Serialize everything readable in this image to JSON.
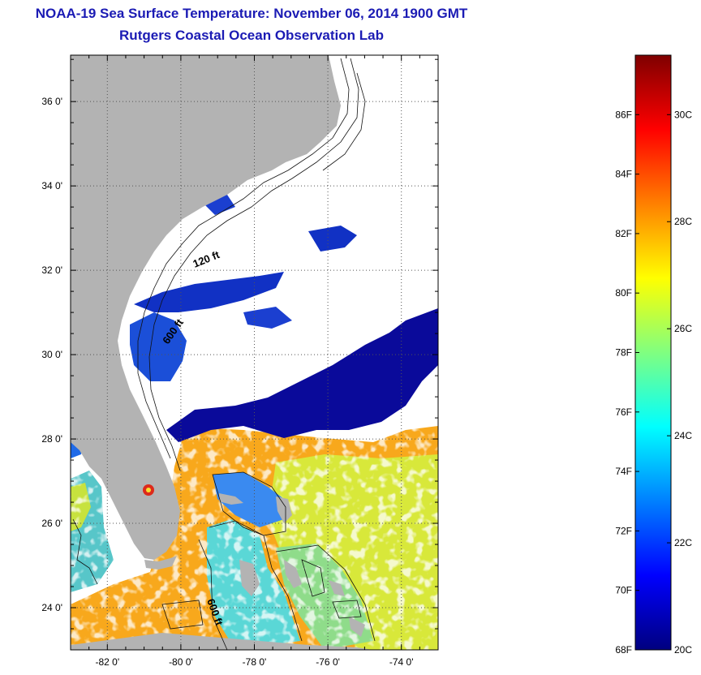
{
  "header": {
    "title": "NOAA-19 Sea Surface Temperature:  November 06, 2014 1900 GMT",
    "subtitle": "Rutgers Coastal Ocean Observation Lab"
  },
  "map": {
    "lon_range": [
      -83.0,
      -73.0
    ],
    "lat_range": [
      23.0,
      37.1
    ],
    "lat_ticks": [
      {
        "value": 24,
        "label": "24 0'"
      },
      {
        "value": 26,
        "label": "26 0'"
      },
      {
        "value": 28,
        "label": "28 0'"
      },
      {
        "value": 30,
        "label": "30 0'"
      },
      {
        "value": 32,
        "label": "32 0'"
      },
      {
        "value": 34,
        "label": "34 0'"
      },
      {
        "value": 36,
        "label": "36 0'"
      }
    ],
    "lon_ticks": [
      {
        "value": -82,
        "label": "-82 0'"
      },
      {
        "value": -80,
        "label": "-80 0'"
      },
      {
        "value": -78,
        "label": "-78 0'"
      },
      {
        "value": -76,
        "label": "-76 0'"
      },
      {
        "value": -74,
        "label": "-74 0'"
      }
    ],
    "contour_labels": [
      "120 ft",
      "600 ft",
      "600 ft"
    ],
    "colors": {
      "land": "#b3b3b3",
      "ocean_cloud": "#ffffff",
      "grid": "#555555"
    }
  },
  "colorbar": {
    "range_f": [
      68,
      88
    ],
    "fahrenheit_ticks": [
      {
        "value": 68,
        "label": "68F"
      },
      {
        "value": 70,
        "label": "70F"
      },
      {
        "value": 72,
        "label": "72F"
      },
      {
        "value": 74,
        "label": "74F"
      },
      {
        "value": 76,
        "label": "76F"
      },
      {
        "value": 78,
        "label": "78F"
      },
      {
        "value": 80,
        "label": "80F"
      },
      {
        "value": 82,
        "label": "82F"
      },
      {
        "value": 84,
        "label": "84F"
      },
      {
        "value": 86,
        "label": "86F"
      }
    ],
    "celsius_ticks": [
      {
        "value": 20,
        "label": "20C"
      },
      {
        "value": 22,
        "label": "22C"
      },
      {
        "value": 24,
        "label": "24C"
      },
      {
        "value": 26,
        "label": "26C"
      },
      {
        "value": 28,
        "label": "28C"
      },
      {
        "value": 30,
        "label": "30C"
      }
    ],
    "gradient": [
      "#00007f",
      "#0000ff",
      "#0080ff",
      "#00ffff",
      "#80ff80",
      "#ffff00",
      "#ff8000",
      "#ff0000",
      "#7f0000"
    ]
  }
}
